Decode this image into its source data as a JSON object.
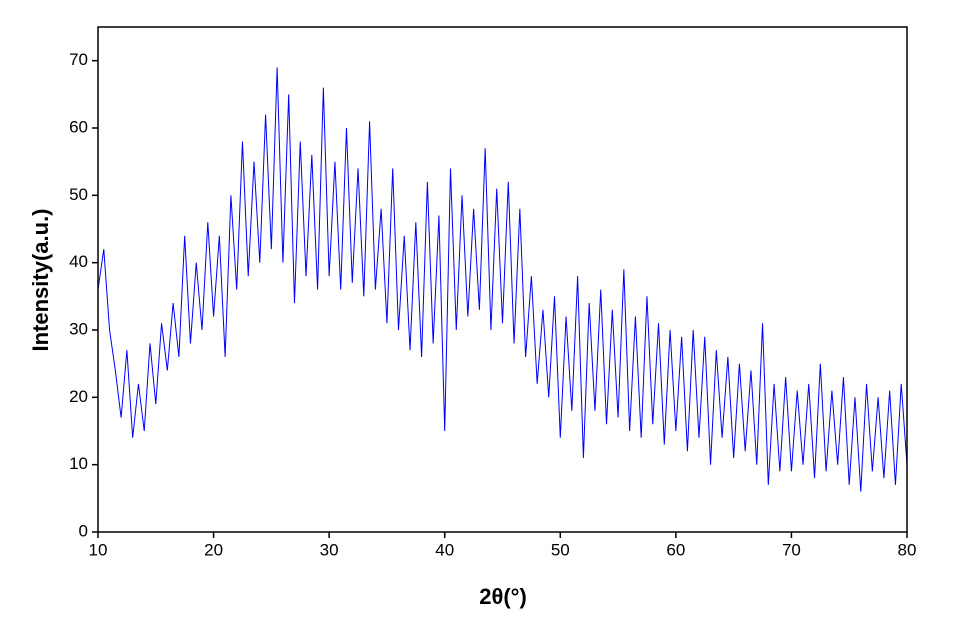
{
  "chart_data": {
    "type": "line",
    "x_label": "2θ(°)",
    "y_label": "Intensity(a.u.)",
    "color": "#0000ff",
    "xlim": [
      10,
      80
    ],
    "ylim": [
      0,
      75
    ],
    "xticks": [
      10,
      20,
      30,
      40,
      50,
      60,
      70,
      80
    ],
    "yticks": [
      0,
      10,
      20,
      30,
      40,
      50,
      60,
      70
    ],
    "x": [
      10,
      10.5,
      11,
      11.5,
      12,
      12.5,
      13,
      13.5,
      14,
      14.5,
      15,
      15.5,
      16,
      16.5,
      17,
      17.5,
      18,
      18.5,
      19,
      19.5,
      20,
      20.5,
      21,
      21.5,
      22,
      22.5,
      23,
      23.5,
      24,
      24.5,
      25,
      25.5,
      26,
      26.5,
      27,
      27.5,
      28,
      28.5,
      29,
      29.5,
      30,
      30.5,
      31,
      31.5,
      32,
      32.5,
      33,
      33.5,
      34,
      34.5,
      35,
      35.5,
      36,
      36.5,
      37,
      37.5,
      38,
      38.5,
      39,
      39.5,
      40,
      40.5,
      41,
      41.5,
      42,
      42.5,
      43,
      43.5,
      44,
      44.5,
      45,
      45.5,
      46,
      46.5,
      47,
      47.5,
      48,
      48.5,
      49,
      49.5,
      50,
      50.5,
      51,
      51.5,
      52,
      52.5,
      53,
      53.5,
      54,
      54.5,
      55,
      55.5,
      56,
      56.5,
      57,
      57.5,
      58,
      58.5,
      59,
      59.5,
      60,
      60.5,
      61,
      61.5,
      62,
      62.5,
      63,
      63.5,
      64,
      64.5,
      65,
      65.5,
      66,
      66.5,
      67,
      67.5,
      68,
      68.5,
      69,
      69.5,
      70,
      70.5,
      71,
      71.5,
      72,
      72.5,
      73,
      73.5,
      74,
      74.5,
      75,
      75.5,
      76,
      76.5,
      77,
      77.5,
      78,
      78.5,
      79,
      79.5,
      80
    ],
    "values": [
      36,
      42,
      30,
      24,
      17,
      27,
      14,
      22,
      15,
      28,
      19,
      31,
      24,
      34,
      26,
      44,
      28,
      40,
      30,
      46,
      32,
      44,
      26,
      50,
      36,
      58,
      38,
      55,
      40,
      62,
      42,
      69,
      40,
      65,
      34,
      58,
      38,
      56,
      36,
      66,
      38,
      55,
      36,
      60,
      37,
      54,
      35,
      61,
      36,
      48,
      31,
      54,
      30,
      44,
      27,
      46,
      26,
      52,
      28,
      47,
      15,
      54,
      30,
      50,
      32,
      48,
      33,
      57,
      30,
      51,
      31,
      52,
      28,
      48,
      26,
      38,
      22,
      33,
      20,
      35,
      14,
      32,
      18,
      38,
      11,
      34,
      18,
      36,
      16,
      33,
      17,
      39,
      15,
      32,
      14,
      35,
      16,
      31,
      13,
      30,
      15,
      29,
      12,
      30,
      14,
      29,
      10,
      27,
      14,
      26,
      11,
      25,
      12,
      24,
      10,
      31,
      7,
      22,
      9,
      23,
      9,
      21,
      10,
      22,
      8,
      25,
      9,
      21,
      10,
      23,
      7,
      20,
      6,
      22,
      9,
      20,
      8,
      21,
      7,
      22,
      10
    ]
  }
}
